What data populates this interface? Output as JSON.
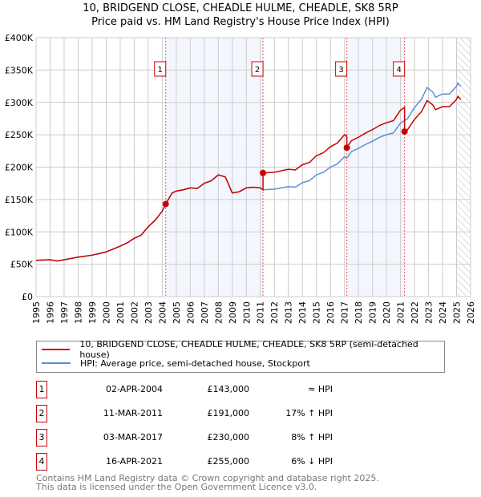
{
  "chart_data": {
    "type": "line",
    "title": "10, BRIDGEND CLOSE, CHEADLE HULME, CHEADLE, SK8 5RP",
    "subtitle": "Price paid vs. HM Land Registry's House Price Index (HPI)",
    "xlim": [
      1995,
      2026
    ],
    "ylim": [
      0,
      400000
    ],
    "x_ticks": [
      "1995",
      "1996",
      "1997",
      "1998",
      "1999",
      "2000",
      "2001",
      "2002",
      "2003",
      "2004",
      "2005",
      "2006",
      "2007",
      "2008",
      "2009",
      "2010",
      "2011",
      "2012",
      "2013",
      "2014",
      "2015",
      "2016",
      "2017",
      "2018",
      "2019",
      "2020",
      "2021",
      "2022",
      "2023",
      "2024",
      "2025",
      "2026"
    ],
    "y_ticks": [
      {
        "v": 0,
        "label": "£0"
      },
      {
        "v": 50000,
        "label": "£50K"
      },
      {
        "v": 100000,
        "label": "£100K"
      },
      {
        "v": 150000,
        "label": "£150K"
      },
      {
        "v": 200000,
        "label": "£200K"
      },
      {
        "v": 250000,
        "label": "£250K"
      },
      {
        "v": 300000,
        "label": "£300K"
      },
      {
        "v": 350000,
        "label": "£350K"
      },
      {
        "v": 400000,
        "label": "£400K"
      }
    ],
    "grid": true,
    "hatched_from": 2025.0,
    "shaded_ranges": [
      [
        2004.25,
        2011.19
      ],
      [
        2017.17,
        2021.29
      ]
    ],
    "hpi_series": {
      "name": "HPI: Average price, semi-detached house, Stockport",
      "color": "#5b8fd6",
      "x": [
        1995,
        1996,
        1996.5,
        1997,
        1998,
        1999,
        2000,
        2001,
        2001.5,
        2002,
        2002.5,
        2003,
        2003.5,
        2004,
        2004.25,
        2004.7,
        2005,
        2005.5,
        2006,
        2006.5,
        2007,
        2007.5,
        2008,
        2008.5,
        2009,
        2009.5,
        2010,
        2010.5,
        2011,
        2011.19,
        2012,
        2013,
        2013.5,
        2014,
        2014.5,
        2015,
        2015.5,
        2016,
        2016.5,
        2017,
        2017.17,
        2017.5,
        2018,
        2018.5,
        2019,
        2019.5,
        2020,
        2020.5,
        2021,
        2021.29,
        2021.5,
        2022,
        2022.5,
        2022.9,
        2023.3,
        2023.5,
        2024,
        2024.5,
        2025,
        2025.1,
        2025.3
      ],
      "y": [
        56000,
        57000,
        55000,
        57000,
        61000,
        64000,
        69000,
        78000,
        83000,
        90000,
        95000,
        108000,
        118000,
        132000,
        143000,
        160000,
        163000,
        165000,
        168000,
        167000,
        175000,
        179000,
        188000,
        185000,
        160000,
        162000,
        168000,
        169000,
        168000,
        165000,
        166000,
        170000,
        169000,
        176000,
        179000,
        188000,
        192000,
        200000,
        205000,
        216000,
        214000,
        224000,
        229000,
        235000,
        240000,
        246000,
        250000,
        253000,
        268000,
        272000,
        275000,
        292000,
        305000,
        323000,
        316000,
        308000,
        313000,
        313000,
        325000,
        330000,
        325000
      ]
    },
    "price_series": {
      "name": "10, BRIDGEND CLOSE, CHEADLE HULME, CHEADLE, SK8 5RP (semi-detached house)",
      "color": "#cc0000"
    },
    "sales": [
      {
        "n": "1",
        "x": 2004.25,
        "date": "02-APR-2004",
        "price": 143000,
        "price_label": "£143,000",
        "hpi": "≈ HPI"
      },
      {
        "n": "2",
        "x": 2011.19,
        "date": "11-MAR-2011",
        "price": 191000,
        "price_label": "£191,000",
        "hpi": "17% ↑ HPI"
      },
      {
        "n": "3",
        "x": 2017.17,
        "date": "03-MAR-2017",
        "price": 230000,
        "price_label": "£230,000",
        "hpi": "8% ↑ HPI"
      },
      {
        "n": "4",
        "x": 2021.29,
        "date": "16-APR-2021",
        "price": 255000,
        "price_label": "£255,000",
        "hpi": "6% ↓ HPI"
      }
    ]
  },
  "footer": {
    "line1": "Contains HM Land Registry data © Crown copyright and database right 2025.",
    "line2": "This data is licensed under the Open Government Licence v3.0."
  }
}
